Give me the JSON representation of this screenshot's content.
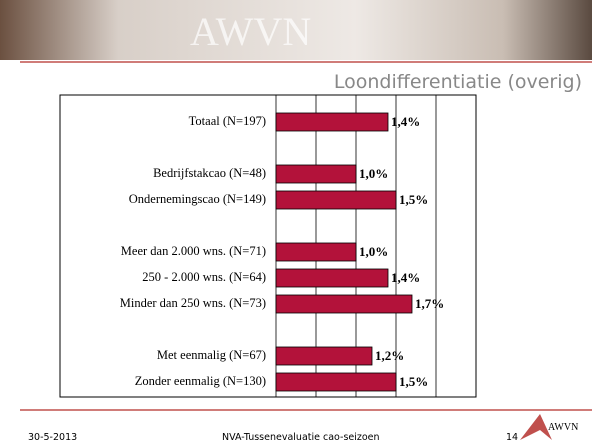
{
  "header": {
    "brand": "AWVN"
  },
  "chart_data": {
    "type": "barh",
    "title": "Loondifferentiatie (overig)",
    "categories": [
      "Totaal (N=197)",
      null,
      "Bedrijfstakcao (N=48)",
      "Ondernemingscao (N=149)",
      null,
      "Meer dan 2.000 wns. (N=71)",
      "250 - 2.000 wns. (N=64)",
      "Minder dan 250 wns. (N=73)",
      null,
      "Met eenmalig (N=67)",
      "Zonder eenmalig (N=130)"
    ],
    "values": [
      1.4,
      null,
      1.0,
      1.5,
      null,
      1.0,
      1.4,
      1.7,
      null,
      1.2,
      1.5
    ],
    "value_labels": [
      "1,4%",
      null,
      "1,0%",
      "1,5%",
      null,
      "1,0%",
      "1,4%",
      "1,7%",
      null,
      "1,2%",
      "1,5%"
    ],
    "color": "#b3123a",
    "xlim": [
      0,
      2.5
    ],
    "xticks": [
      0,
      0.5,
      1,
      1.5,
      2,
      2.5
    ],
    "grid": true
  },
  "footer": {
    "date": "30-5-2013",
    "subject": "NVA-Tussenevaluatie cao-seizoen",
    "page": "14",
    "logo": "AWVN"
  }
}
